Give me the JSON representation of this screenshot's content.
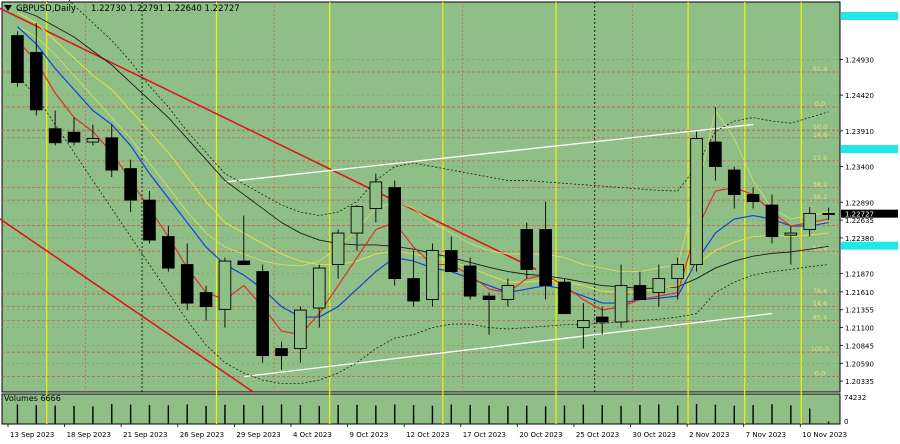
{
  "header": {
    "symbol": "GBPUSD,Daily",
    "ohlc": "1.22730 1.22791 1.22640 1.22727"
  },
  "colors": {
    "plot_bg": "#8fbf87",
    "bull_body": "#8fbf87",
    "bear_body": "#000000",
    "grid": "#6fa067",
    "fib_line": "#d05050",
    "fib_label": "#e8e07a",
    "vline": "#f2f200",
    "channel_white": "#ffffff",
    "trend_red": "#e01010",
    "ma_red": "#e03020",
    "ma_blue": "#1040e0",
    "ma_yellow": "#e8e040",
    "ma_black": "#1a1a1a",
    "dashed_band": "#1a1a1a",
    "cyan_tag": "#20e8e8"
  },
  "price_axis": {
    "ticks": [
      "1.24930",
      "1.24420",
      "1.23910",
      "1.23400",
      "1.22890",
      "1.22635",
      "1.22380",
      "1.21870",
      "1.21610",
      "1.21355",
      "1.21100",
      "1.20845",
      "1.20590",
      "1.20335"
    ],
    "current_price": "1.22727",
    "cyan_levels": [
      {
        "price": 1.2555
      },
      {
        "price": 1.2365
      },
      {
        "price": 1.2227
      }
    ]
  },
  "fib_levels": [
    {
      "label": "81.8",
      "price": 1.2475
    },
    {
      "label": "0.0",
      "price": 1.2425
    },
    {
      "label": "50.0",
      "price": 1.2392
    },
    {
      "label": "14.6",
      "price": 1.2381
    },
    {
      "label": "23.6",
      "price": 1.2348
    },
    {
      "label": "38.2",
      "price": 1.231
    },
    {
      "label": "38.2",
      "price": 1.2292
    },
    {
      "label": "50.0",
      "price": 1.2256
    },
    {
      "label": "61.8",
      "price": 1.2219
    },
    {
      "label": "76.4",
      "price": 1.2158
    },
    {
      "label": "14.6",
      "price": 1.214
    },
    {
      "label": "85.4",
      "price": 1.212
    },
    {
      "label": "100.0",
      "price": 1.2075
    },
    {
      "label": "0.0",
      "price": 1.204
    }
  ],
  "chart_data": {
    "type": "candlestick",
    "title": "GBPUSD,Daily",
    "ylim": [
      1.2018,
      1.2575
    ],
    "date_labels": [
      "13 Sep 2023",
      "18 Sep 2023",
      "21 Sep 2023",
      "26 Sep 2023",
      "29 Sep 2023",
      "4 Oct 2023",
      "9 Oct 2023",
      "12 Oct 2023",
      "17 Oct 2023",
      "20 Oct 2023",
      "25 Oct 2023",
      "30 Oct 2023",
      "2 Nov 2023",
      "7 Nov 2023",
      "10 Nov 2023"
    ],
    "candles": [
      {
        "o": 1.2527,
        "h": 1.2533,
        "l": 1.2454,
        "c": 1.246
      },
      {
        "o": 1.2503,
        "h": 1.2545,
        "l": 1.2413,
        "c": 1.2421
      },
      {
        "o": 1.2394,
        "h": 1.242,
        "l": 1.237,
        "c": 1.2374
      },
      {
        "o": 1.2389,
        "h": 1.241,
        "l": 1.237,
        "c": 1.2375
      },
      {
        "o": 1.2375,
        "h": 1.24,
        "l": 1.237,
        "c": 1.238
      },
      {
        "o": 1.2381,
        "h": 1.24,
        "l": 1.2325,
        "c": 1.2335
      },
      {
        "o": 1.2337,
        "h": 1.235,
        "l": 1.2275,
        "c": 1.2292
      },
      {
        "o": 1.2292,
        "h": 1.2305,
        "l": 1.223,
        "c": 1.2235
      },
      {
        "o": 1.224,
        "h": 1.2255,
        "l": 1.219,
        "c": 1.2195
      },
      {
        "o": 1.22,
        "h": 1.223,
        "l": 1.2135,
        "c": 1.2145
      },
      {
        "o": 1.216,
        "h": 1.217,
        "l": 1.212,
        "c": 1.214
      },
      {
        "o": 1.2136,
        "h": 1.221,
        "l": 1.211,
        "c": 1.2205
      },
      {
        "o": 1.2205,
        "h": 1.227,
        "l": 1.22,
        "c": 1.22
      },
      {
        "o": 1.219,
        "h": 1.22,
        "l": 1.206,
        "c": 1.207
      },
      {
        "o": 1.208,
        "h": 1.209,
        "l": 1.205,
        "c": 1.207
      },
      {
        "o": 1.208,
        "h": 1.214,
        "l": 1.206,
        "c": 1.2135
      },
      {
        "o": 1.2138,
        "h": 1.22,
        "l": 1.211,
        "c": 1.2195
      },
      {
        "o": 1.22,
        "h": 1.225,
        "l": 1.218,
        "c": 1.2245
      },
      {
        "o": 1.2245,
        "h": 1.2285,
        "l": 1.222,
        "c": 1.2283
      },
      {
        "o": 1.228,
        "h": 1.233,
        "l": 1.226,
        "c": 1.2318
      },
      {
        "o": 1.231,
        "h": 1.232,
        "l": 1.217,
        "c": 1.218
      },
      {
        "o": 1.218,
        "h": 1.222,
        "l": 1.214,
        "c": 1.2148
      },
      {
        "o": 1.215,
        "h": 1.223,
        "l": 1.214,
        "c": 1.222
      },
      {
        "o": 1.222,
        "h": 1.224,
        "l": 1.219,
        "c": 1.219
      },
      {
        "o": 1.2198,
        "h": 1.221,
        "l": 1.215,
        "c": 1.2155
      },
      {
        "o": 1.2155,
        "h": 1.216,
        "l": 1.21,
        "c": 1.215
      },
      {
        "o": 1.215,
        "h": 1.218,
        "l": 1.214,
        "c": 1.217
      },
      {
        "o": 1.225,
        "h": 1.226,
        "l": 1.218,
        "c": 1.2193
      },
      {
        "o": 1.225,
        "h": 1.229,
        "l": 1.215,
        "c": 1.217
      },
      {
        "o": 1.2175,
        "h": 1.218,
        "l": 1.213,
        "c": 1.213
      },
      {
        "o": 1.211,
        "h": 1.2145,
        "l": 1.208,
        "c": 1.212
      },
      {
        "o": 1.2125,
        "h": 1.214,
        "l": 1.21,
        "c": 1.2118
      },
      {
        "o": 1.2118,
        "h": 1.22,
        "l": 1.211,
        "c": 1.217
      },
      {
        "o": 1.217,
        "h": 1.219,
        "l": 1.215,
        "c": 1.215
      },
      {
        "o": 1.216,
        "h": 1.22,
        "l": 1.214,
        "c": 1.218
      },
      {
        "o": 1.218,
        "h": 1.221,
        "l": 1.215,
        "c": 1.22
      },
      {
        "o": 1.22,
        "h": 1.239,
        "l": 1.219,
        "c": 1.238
      },
      {
        "o": 1.2375,
        "h": 1.2425,
        "l": 1.232,
        "c": 1.234
      },
      {
        "o": 1.2335,
        "h": 1.234,
        "l": 1.228,
        "c": 1.23
      },
      {
        "o": 1.23,
        "h": 1.231,
        "l": 1.228,
        "c": 1.229
      },
      {
        "o": 1.2285,
        "h": 1.23,
        "l": 1.223,
        "c": 1.224
      },
      {
        "o": 1.2242,
        "h": 1.2255,
        "l": 1.22,
        "c": 1.2245
      },
      {
        "o": 1.225,
        "h": 1.2282,
        "l": 1.224,
        "c": 1.2273
      },
      {
        "o": 1.2273,
        "h": 1.22791,
        "l": 1.2264,
        "c": 1.22727
      }
    ],
    "ma_red": [
      1.252,
      1.249,
      1.2445,
      1.241,
      1.239,
      1.236,
      1.232,
      1.228,
      1.224,
      1.2195,
      1.216,
      1.215,
      1.217,
      1.214,
      1.2105,
      1.21,
      1.213,
      1.217,
      1.221,
      1.225,
      1.226,
      1.2225,
      1.22,
      1.22,
      1.2185,
      1.2165,
      1.216,
      1.218,
      1.2185,
      1.217,
      1.215,
      1.2135,
      1.214,
      1.215,
      1.2155,
      1.216,
      1.225,
      1.2305,
      1.231,
      1.23,
      1.2275,
      1.2255,
      1.226,
      1.2265
    ],
    "ma_blue": [
      1.254,
      1.2515,
      1.248,
      1.245,
      1.242,
      1.24,
      1.237,
      1.233,
      1.2295,
      1.226,
      1.2225,
      1.22,
      1.2185,
      1.2165,
      1.214,
      1.2125,
      1.2125,
      1.214,
      1.2165,
      1.219,
      1.221,
      1.2205,
      1.2195,
      1.219,
      1.218,
      1.217,
      1.216,
      1.2165,
      1.217,
      1.2165,
      1.2155,
      1.2145,
      1.2145,
      1.215,
      1.2152,
      1.2155,
      1.2205,
      1.2245,
      1.2265,
      1.227,
      1.2265,
      1.2255,
      1.2255,
      1.226
    ],
    "ma_yellow": [
      1.256,
      1.2545,
      1.252,
      1.2495,
      1.247,
      1.245,
      1.242,
      1.239,
      1.236,
      1.2325,
      1.229,
      1.226,
      1.2245,
      1.223,
      1.2215,
      1.2205,
      1.22,
      1.22,
      1.2205,
      1.2215,
      1.222,
      1.2215,
      1.221,
      1.2205,
      1.2195,
      1.2185,
      1.2175,
      1.2175,
      1.2178,
      1.2176,
      1.217,
      1.2162,
      1.216,
      1.2162,
      1.2165,
      1.217,
      1.22,
      1.222,
      1.2232,
      1.224,
      1.2242,
      1.224,
      1.2242,
      1.2245
    ],
    "ma_black": [
      1.2565,
      1.2555,
      1.254,
      1.2525,
      1.2505,
      1.2485,
      1.246,
      1.2435,
      1.241,
      1.238,
      1.235,
      1.232,
      1.23,
      1.228,
      1.226,
      1.2245,
      1.2235,
      1.223,
      1.2228,
      1.2228,
      1.2226,
      1.2222,
      1.2216,
      1.221,
      1.2203,
      1.2196,
      1.219,
      1.2186,
      1.2184,
      1.218,
      1.2175,
      1.217,
      1.2168,
      1.2166,
      1.2166,
      1.2168,
      1.218,
      1.2195,
      1.2205,
      1.2212,
      1.2216,
      1.2218,
      1.2222,
      1.2226
    ],
    "band_upper": [
      1.265,
      1.263,
      1.26,
      1.257,
      1.2545,
      1.252,
      1.249,
      1.2455,
      1.2425,
      1.239,
      1.236,
      1.233,
      1.2315,
      1.23,
      1.2285,
      1.2275,
      1.227,
      1.2275,
      1.229,
      1.232,
      1.234,
      1.2345,
      1.234,
      1.2335,
      1.233,
      1.2325,
      1.232,
      1.232,
      1.2318,
      1.2316,
      1.2314,
      1.2312,
      1.231,
      1.2308,
      1.2306,
      1.2305,
      1.234,
      1.239,
      1.2405,
      1.241,
      1.2405,
      1.2402,
      1.241,
      1.2418
    ],
    "band_lower": [
      1.247,
      1.244,
      1.24,
      1.236,
      1.232,
      1.228,
      1.224,
      1.22,
      1.216,
      1.212,
      1.2085,
      1.206,
      1.2045,
      1.2035,
      1.203,
      1.203,
      1.2035,
      1.2045,
      1.206,
      1.208,
      1.2095,
      1.21,
      1.211,
      1.2115,
      1.2115,
      1.211,
      1.2108,
      1.211,
      1.2112,
      1.2114,
      1.2115,
      1.2116,
      1.2118,
      1.212,
      1.2122,
      1.2125,
      1.213,
      1.216,
      1.2175,
      1.2185,
      1.219,
      1.2193,
      1.2197,
      1.22
    ],
    "ma_yellow_thin": [
      1.254,
      1.2525,
      1.25,
      1.247,
      1.244,
      1.241,
      1.238,
      1.2345,
      1.231,
      1.2275,
      1.2245,
      1.2225,
      1.2215,
      1.2205,
      1.22,
      1.2198,
      1.2205,
      1.2225,
      1.225,
      1.228,
      1.229,
      1.228,
      1.226,
      1.2245,
      1.223,
      1.222,
      1.2215,
      1.2215,
      1.2215,
      1.221,
      1.22,
      1.2195,
      1.219,
      1.219,
      1.2195,
      1.22,
      1.23,
      1.242,
      1.238,
      1.232,
      1.228,
      1.2265,
      1.227,
      1.2275
    ],
    "volume_label": "Volumes 6666",
    "volume_ticks": [
      "74232",
      "0"
    ],
    "volumes": [
      52000,
      50000,
      49000,
      48000,
      47000,
      53000,
      51000,
      50000,
      49500,
      52000,
      48000,
      51000,
      50500,
      49000,
      52000,
      50000,
      48000,
      50500,
      51000,
      49000,
      52000,
      50000,
      48500,
      51500,
      50500,
      49000,
      47500,
      48500,
      47000,
      49000,
      51500,
      50000,
      48000,
      50500,
      52000,
      49000,
      53000,
      51000,
      48500,
      50000,
      52500,
      49500,
      41000,
      6666
    ]
  }
}
